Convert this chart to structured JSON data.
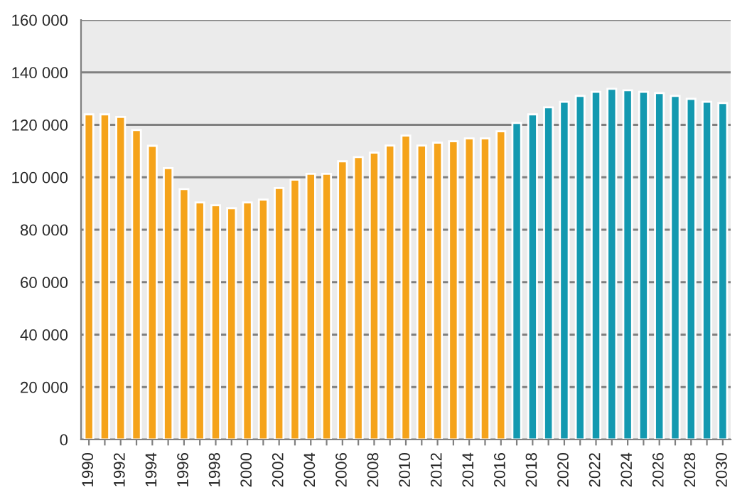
{
  "chart_data": {
    "type": "bar",
    "categories": [
      "1990",
      null,
      "1992",
      null,
      "1994",
      null,
      "1996",
      null,
      "1998",
      null,
      "2000",
      null,
      "2002",
      null,
      "2004",
      null,
      "2006",
      null,
      "2008",
      null,
      "2010",
      null,
      "2012",
      null,
      "2014",
      null,
      "2016",
      null,
      "2018",
      null,
      "2020",
      null,
      "2022",
      null,
      "2024",
      null,
      "2026",
      null,
      "2028",
      null,
      "2030"
    ],
    "values": [
      124000,
      124000,
      123000,
      118000,
      112000,
      103500,
      95500,
      90400,
      89300,
      88200,
      90400,
      91500,
      95900,
      99100,
      101300,
      101300,
      106100,
      107700,
      109400,
      112100,
      115900,
      112100,
      113200,
      113700,
      114800,
      114800,
      117500,
      120700,
      124000,
      126700,
      128800,
      131000,
      132600,
      133700,
      133200,
      132600,
      132100,
      131000,
      129900,
      128800,
      128300
    ],
    "colors": [
      "#f5a31a",
      "#f5a31a",
      "#f5a31a",
      "#f5a31a",
      "#f5a31a",
      "#f5a31a",
      "#f5a31a",
      "#f5a31a",
      "#f5a31a",
      "#f5a31a",
      "#f5a31a",
      "#f5a31a",
      "#f5a31a",
      "#f5a31a",
      "#f5a31a",
      "#f5a31a",
      "#f5a31a",
      "#f5a31a",
      "#f5a31a",
      "#f5a31a",
      "#f5a31a",
      "#f5a31a",
      "#f5a31a",
      "#f5a31a",
      "#f5a31a",
      "#f5a31a",
      "#f5a31a",
      "#1399b0",
      "#1399b0",
      "#1399b0",
      "#1399b0",
      "#1399b0",
      "#1399b0",
      "#1399b0",
      "#1399b0",
      "#1399b0",
      "#1399b0",
      "#1399b0",
      "#1399b0",
      "#1399b0",
      "#1399b0"
    ],
    "ylim": [
      0,
      160000
    ],
    "yticks": [
      {
        "value": 0,
        "label": "0"
      },
      {
        "value": 20000,
        "label": "20 000"
      },
      {
        "value": 40000,
        "label": "40 000"
      },
      {
        "value": 60000,
        "label": "60 000"
      },
      {
        "value": 80000,
        "label": "80 000"
      },
      {
        "value": 100000,
        "label": "100 000"
      },
      {
        "value": 120000,
        "label": "120 000"
      },
      {
        "value": 140000,
        "label": "140 000"
      },
      {
        "value": 160000,
        "label": "160 000"
      }
    ],
    "grid": "y"
  }
}
